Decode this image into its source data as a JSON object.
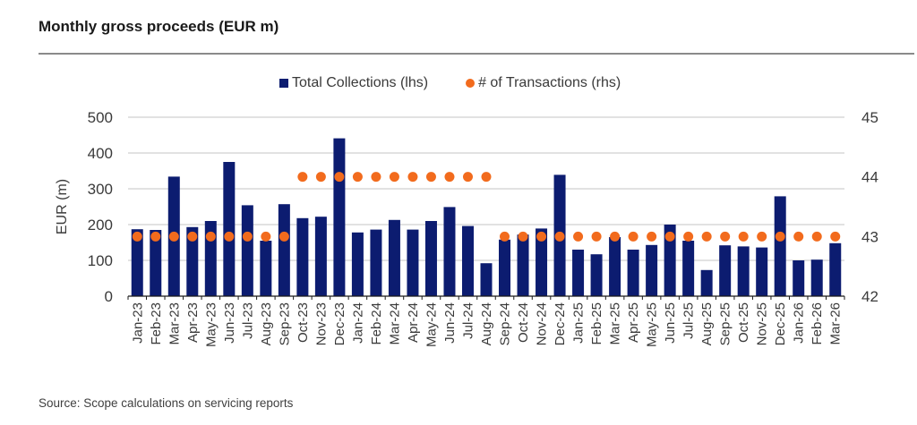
{
  "chart_data": {
    "type": "bar",
    "title": "Monthly gross proceeds (EUR m)",
    "source": "Source: Scope calculations on servicing reports",
    "ylabel": "EUR (m)",
    "ylabel_right": "",
    "xlabel": "",
    "ylim": [
      0,
      500
    ],
    "yticks": [
      0,
      100,
      200,
      300,
      400,
      500
    ],
    "ylim_right": [
      42,
      45
    ],
    "yticks_right": [
      42,
      43,
      44,
      45
    ],
    "grid": true,
    "legend_position": "top-center",
    "categories": [
      "Jan-23",
      "Feb-23",
      "Mar-23",
      "Apr-23",
      "May-23",
      "Jun-23",
      "Jul-23",
      "Aug-23",
      "Sep-23",
      "Oct-23",
      "Nov-23",
      "Dec-23",
      "Jan-24",
      "Feb-24",
      "Mar-24",
      "Apr-24",
      "May-24",
      "Jun-24",
      "Jul-24",
      "Aug-24",
      "Sep-24",
      "Oct-24",
      "Nov-24",
      "Dec-24",
      "Jan-25",
      "Feb-25",
      "Mar-25",
      "Apr-25",
      "May-25",
      "Jun-25",
      "Jul-25",
      "Aug-25",
      "Sep-25",
      "Oct-25",
      "Nov-25",
      "Dec-25",
      "Jan-26",
      "Feb-26",
      "Mar-26"
    ],
    "series": [
      {
        "name": "Total Collections (lhs)",
        "type": "bar",
        "axis": "left",
        "color": "#0c1c70",
        "values": [
          187,
          185,
          334,
          193,
          210,
          375,
          254,
          155,
          257,
          218,
          222,
          441,
          178,
          186,
          213,
          186,
          210,
          249,
          196,
          92,
          158,
          172,
          189,
          339,
          130,
          117,
          165,
          130,
          143,
          200,
          155,
          73,
          142,
          139,
          136,
          279,
          100,
          102,
          148
        ]
      },
      {
        "name": "# of Transactions (rhs)",
        "type": "scatter",
        "axis": "right",
        "color": "#f26b1d",
        "values": [
          43,
          43,
          43,
          43,
          43,
          43,
          43,
          43,
          43,
          44,
          44,
          44,
          44,
          44,
          44,
          44,
          44,
          44,
          44,
          44,
          43,
          43,
          43,
          43,
          43,
          43,
          43,
          43,
          43,
          43,
          43,
          43,
          43,
          43,
          43,
          43,
          43,
          43,
          43
        ]
      }
    ]
  },
  "legend": {
    "items": [
      {
        "label": "Total Collections (lhs)",
        "icon": "square-marker"
      },
      {
        "label": "# of Transactions (rhs)",
        "icon": "circle-marker"
      }
    ]
  }
}
